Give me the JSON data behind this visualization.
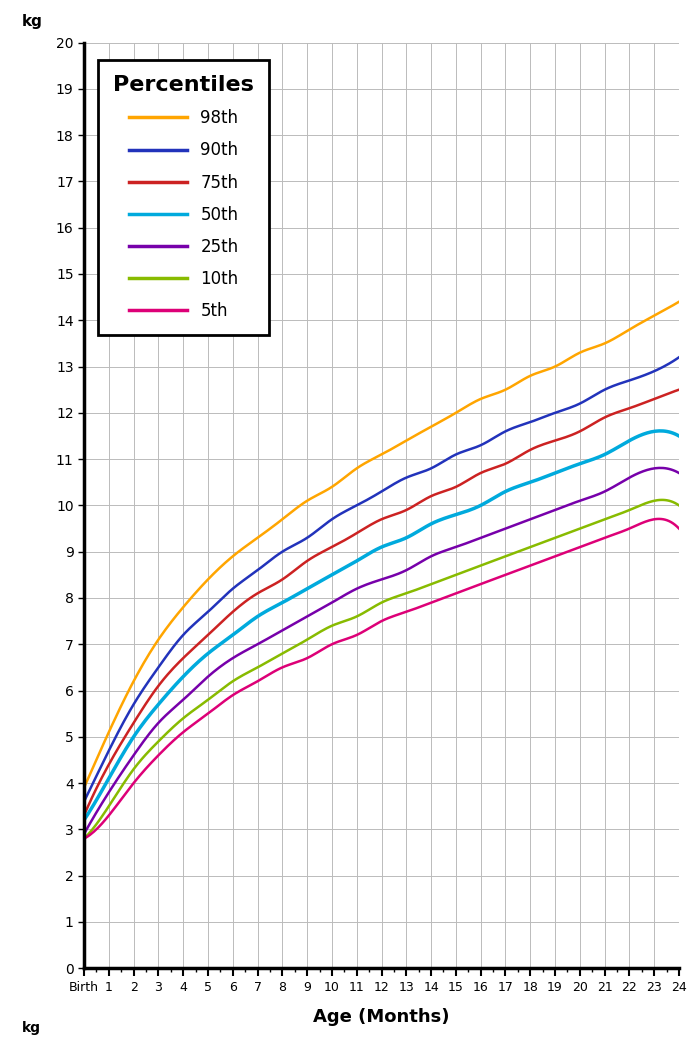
{
  "xlabel": "Age (Months)",
  "ylabel_top": "kg",
  "ylabel_bottom": "kg",
  "ylim": [
    0,
    20
  ],
  "xlim": [
    0,
    24
  ],
  "yticks": [
    0,
    1,
    2,
    3,
    4,
    5,
    6,
    7,
    8,
    9,
    10,
    11,
    12,
    13,
    14,
    15,
    16,
    17,
    18,
    19,
    20
  ],
  "xtick_labels": [
    "Birth",
    "1",
    "2",
    "3",
    "4",
    "5",
    "6",
    "7",
    "8",
    "9",
    "10",
    "11",
    "12",
    "13",
    "14",
    "15",
    "16",
    "17",
    "18",
    "19",
    "20",
    "21",
    "22",
    "23",
    "24"
  ],
  "percentiles": {
    "98th": {
      "color": "#FFA500"
    },
    "90th": {
      "color": "#2233BB"
    },
    "75th": {
      "color": "#CC2222"
    },
    "50th": {
      "color": "#00AADD"
    },
    "25th": {
      "color": "#7700AA"
    },
    "10th": {
      "color": "#88BB00"
    },
    "5th": {
      "color": "#DD0077"
    }
  },
  "legend_title": "Percentiles",
  "background_color": "#FFFFFF",
  "grid_color": "#BBBBBB",
  "grid_color_minor": "#DDDDDD"
}
